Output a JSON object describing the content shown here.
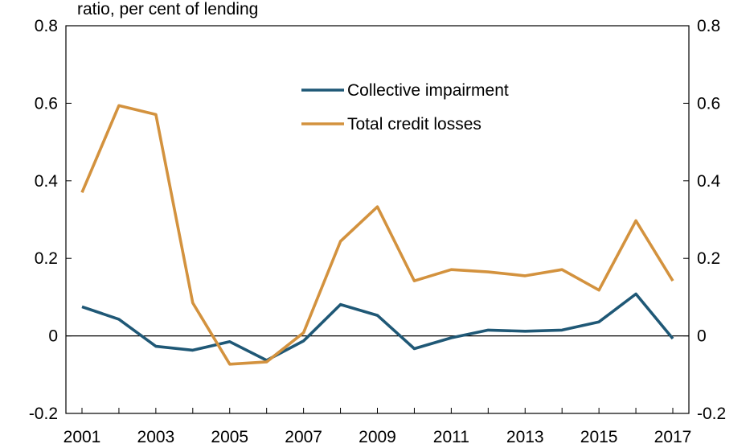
{
  "chart_data": {
    "type": "line",
    "title": "ratio, per cent of lending",
    "x": [
      2001,
      2002,
      2003,
      2004,
      2005,
      2006,
      2007,
      2008,
      2009,
      2010,
      2011,
      2012,
      2013,
      2014,
      2015,
      2016,
      2017
    ],
    "x_tick_labels": [
      "2001",
      "2003",
      "2005",
      "2007",
      "2009",
      "2011",
      "2013",
      "2015",
      "2017"
    ],
    "y_ticks": [
      -0.2,
      0,
      0.2,
      0.4,
      0.6,
      0.8
    ],
    "y_tick_labels": [
      "-0.2",
      "0",
      "0.2",
      "0.4",
      "0.6",
      "0.8"
    ],
    "ylim": [
      -0.2,
      0.8
    ],
    "legend_position": "top-center",
    "grid": false,
    "series": [
      {
        "name": "Collective impairment",
        "color": "#1f5876",
        "values": [
          0.075,
          0.043,
          -0.027,
          -0.037,
          -0.015,
          -0.063,
          -0.013,
          0.081,
          0.053,
          -0.033,
          -0.005,
          0.015,
          0.012,
          0.015,
          0.036,
          0.108,
          -0.007
        ]
      },
      {
        "name": "Total credit losses",
        "color": "#d3923e",
        "values": [
          0.37,
          0.594,
          0.571,
          0.085,
          -0.073,
          -0.067,
          0.008,
          0.244,
          0.333,
          0.142,
          0.171,
          0.165,
          0.155,
          0.171,
          0.118,
          0.297,
          0.142
        ]
      }
    ]
  }
}
